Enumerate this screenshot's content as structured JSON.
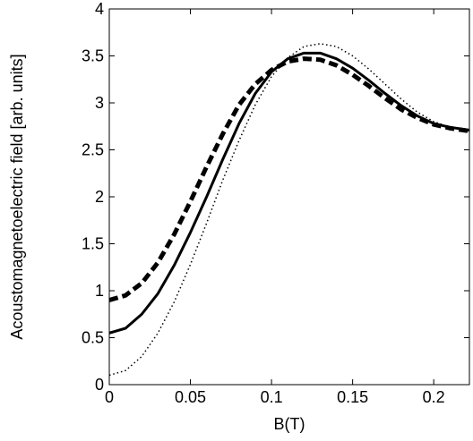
{
  "chart_data": {
    "type": "line",
    "xlabel": "B(T)",
    "ylabel": "Acoustomagnetoelectric field [arb. units]",
    "x": [
      0,
      0.01,
      0.02,
      0.03,
      0.04,
      0.05,
      0.06,
      0.07,
      0.08,
      0.09,
      0.1,
      0.11,
      0.12,
      0.13,
      0.14,
      0.15,
      0.16,
      0.17,
      0.18,
      0.19,
      0.2,
      0.21,
      0.222
    ],
    "series": [
      {
        "color": "#000000",
        "style": "solid",
        "values": [
          0.55,
          0.6,
          0.75,
          0.97,
          1.27,
          1.62,
          2.0,
          2.4,
          2.78,
          3.1,
          3.33,
          3.47,
          3.53,
          3.53,
          3.47,
          3.37,
          3.24,
          3.1,
          2.97,
          2.86,
          2.78,
          2.74,
          2.71
        ]
      },
      {
        "color": "#000000",
        "style": "dashed",
        "values": [
          0.9,
          0.95,
          1.08,
          1.3,
          1.6,
          1.95,
          2.32,
          2.67,
          2.98,
          3.2,
          3.35,
          3.44,
          3.47,
          3.46,
          3.4,
          3.3,
          3.18,
          3.05,
          2.93,
          2.84,
          2.77,
          2.73,
          2.7
        ]
      },
      {
        "color": "#000000",
        "style": "dotted",
        "values": [
          0.1,
          0.15,
          0.3,
          0.55,
          0.88,
          1.28,
          1.72,
          2.18,
          2.6,
          2.98,
          3.28,
          3.48,
          3.6,
          3.63,
          3.6,
          3.5,
          3.36,
          3.2,
          3.04,
          2.9,
          2.8,
          2.74,
          2.7
        ]
      }
    ],
    "xlim": [
      0,
      0.222
    ],
    "ylim": [
      0,
      4
    ],
    "xticks": [
      0,
      0.05,
      0.1,
      0.15,
      0.2
    ],
    "yticks": [
      0,
      0.5,
      1,
      1.5,
      2,
      2.5,
      3,
      3.5,
      4
    ],
    "grid": false
  }
}
